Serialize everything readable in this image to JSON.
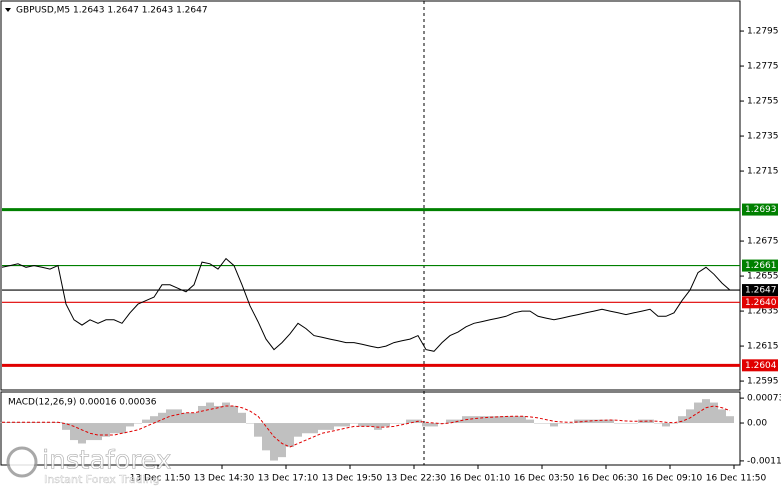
{
  "chart_data": [
    {
      "type": "line",
      "title": "GBPUSD,M5  1.2643 1.2647 1.2643 1.2647",
      "color": "#000000",
      "values": [
        1.266,
        1.2661,
        1.2662,
        1.266,
        1.2661,
        1.266,
        1.2659,
        1.2661,
        1.2639,
        1.263,
        1.2627,
        1.263,
        1.2628,
        1.263,
        1.263,
        1.2628,
        1.2634,
        1.2639,
        1.2641,
        1.2643,
        1.265,
        1.265,
        1.2648,
        1.2646,
        1.265,
        1.2663,
        1.2662,
        1.2659,
        1.2665,
        1.2661,
        1.265,
        1.2638,
        1.2629,
        1.2619,
        1.2613,
        1.2617,
        1.2622,
        1.2628,
        1.2625,
        1.2621,
        1.262,
        1.2619,
        1.2618,
        1.2617,
        1.2617,
        1.2616,
        1.2615,
        1.2614,
        1.2615,
        1.2617,
        1.2618,
        1.2619,
        1.2621,
        1.2613,
        1.2612,
        1.2617,
        1.2621,
        1.2623,
        1.2626,
        1.2628,
        1.2629,
        1.263,
        1.2631,
        1.2632,
        1.2634,
        1.2635,
        1.2635,
        1.2632,
        1.2631,
        1.263,
        1.2631,
        1.2632,
        1.2633,
        1.2634,
        1.2635,
        1.2636,
        1.2635,
        1.2634,
        1.2633,
        1.2634,
        1.2635,
        1.2636,
        1.2632,
        1.2632,
        1.2634,
        1.2641,
        1.2647,
        1.2657,
        1.266,
        1.2656,
        1.2651,
        1.2647
      ],
      "ylim": [
        1.25899,
        1.28116
      ],
      "yticks": [
        1.2795,
        1.2775,
        1.2755,
        1.2735,
        1.2715,
        1.2675,
        1.2655,
        1.2635,
        1.2615,
        1.2595
      ],
      "levels": [
        {
          "value": 1.2693,
          "color": "#008000",
          "bold": true
        },
        {
          "value": 1.2661,
          "color": "#008000",
          "bold": false
        },
        {
          "value": 1.2647,
          "color": "#000000",
          "bold": false
        },
        {
          "value": {
            "value": 1.264,
            "label": "1.2640"
          },
          "color": "#e00000",
          "bold": false
        },
        {
          "value": 1.2604,
          "color": "#e00000",
          "bold": true
        }
      ],
      "time_labels": [
        "13 Dec 11:50",
        "13 Dec 14:30",
        "13 Dec 17:10",
        "13 Dec 19:50",
        "13 Dec 22:30",
        "16 Dec 01:10",
        "16 Dec 03:50",
        "16 Dec 06:30",
        "16 Dec 09:10",
        "16 Dec 11:50"
      ]
    },
    {
      "type": "macd",
      "title": "MACD(12,26,9) 0.00016 0.00036",
      "color": "#c0c0c0",
      "signal_color": "#e00000",
      "values": [
        2e-05,
        3e-05,
        3e-05,
        2e-05,
        3e-05,
        2e-05,
        2e-05,
        3e-05,
        -0.0002,
        -0.0005,
        -0.0006,
        -0.0005,
        -0.0005,
        -0.0004,
        -0.0003,
        -0.0003,
        -0.0001,
        0.0,
        0.0001,
        0.0002,
        0.0003,
        0.0004,
        0.0004,
        0.0003,
        0.0003,
        0.0005,
        0.0006,
        0.0005,
        0.0006,
        0.0005,
        0.0003,
        0.0,
        -0.0004,
        -0.0008,
        -0.0011,
        -0.001,
        -0.0007,
        -0.0004,
        -0.0003,
        -0.0003,
        -0.0002,
        -0.0002,
        -0.0001,
        -0.0001,
        0.0,
        -0.0001,
        -0.0001,
        -0.0002,
        -0.0001,
        0.0,
        0.0,
        0.0001,
        0.0001,
        -0.0001,
        -0.0001,
        0.0,
        0.0001,
        0.0001,
        0.0002,
        0.0002,
        0.0002,
        0.0002,
        0.0002,
        0.0002,
        0.0002,
        0.0002,
        0.0001,
        0.0,
        0.0,
        -0.0001,
        0.0,
        0.0,
        0.0001,
        0.0001,
        0.0001,
        0.0001,
        0.0001,
        0.0,
        0.0,
        0.0,
        0.0001,
        0.0001,
        0.0,
        -0.0001,
        0.0,
        0.0002,
        0.0004,
        0.0006,
        0.0007,
        0.0006,
        0.0004,
        0.0002
      ],
      "signal": [
        2e-05,
        2e-05,
        2e-05,
        2e-05,
        2e-05,
        2e-05,
        2e-05,
        2e-05,
        -2e-05,
        -0.0001,
        -0.0002,
        -0.0003,
        -0.00035,
        -0.00035,
        -0.00035,
        -0.0003,
        -0.00025,
        -0.0002,
        -0.0001,
        0.0,
        0.0001,
        0.0002,
        0.00025,
        0.0003,
        0.0003,
        0.00035,
        0.0004,
        0.00045,
        0.0005,
        0.0005,
        0.00045,
        0.00035,
        0.0002,
        -0.0001,
        -0.0004,
        -0.0006,
        -0.0007,
        -0.0006,
        -0.0005,
        -0.0004,
        -0.0003,
        -0.00025,
        -0.0002,
        -0.00015,
        -0.0001,
        -0.0001,
        -0.0001,
        -0.00012,
        -0.00012,
        -0.0001,
        -5e-05,
        0.0,
        5e-05,
        2e-05,
        0.0,
        -2e-05,
        0.0,
        5e-05,
        0.0001,
        0.00013,
        0.00015,
        0.00017,
        0.00018,
        0.00019,
        0.0002,
        0.0002,
        0.00018,
        0.00015,
        0.0001,
        5e-05,
        3e-05,
        2e-05,
        3e-05,
        5e-05,
        7e-05,
        8e-05,
        9e-05,
        8e-05,
        6e-05,
        5e-05,
        5e-05,
        6e-05,
        5e-05,
        2e-05,
        1e-05,
        5e-05,
        0.00015,
        0.0003,
        0.00045,
        0.0005,
        0.00045,
        0.00036
      ],
      "ylim": [
        -0.00123,
        0.00088
      ],
      "yticks": [
        0.00073,
        {
          "value": 0,
          "label": "0.00"
        },
        -0.00111
      ]
    }
  ],
  "watermark": {
    "brand": "instaforex",
    "tagline": "Instant Forex Trading"
  }
}
